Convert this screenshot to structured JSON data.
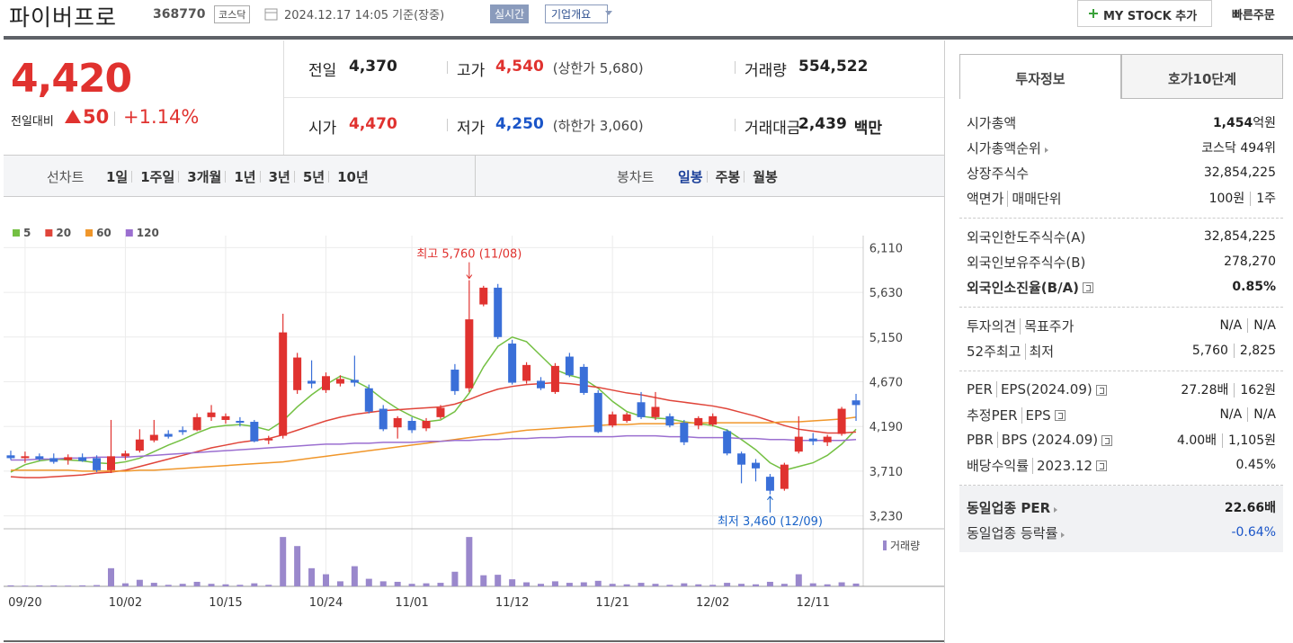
{
  "header": {
    "name": "파이버프로",
    "code": "368770",
    "market": "코스닥",
    "time": "2024.12.17 14:05 기준(장중)",
    "realtime": "실시간",
    "overview": "기업개요",
    "mystock": "MY STOCK 추가",
    "quick_order": "빠른주문"
  },
  "quote": {
    "price": "4,420",
    "change_label": "전일대비",
    "change": "50",
    "change_rate": "+1.14%",
    "items": [
      {
        "label": "전일",
        "value": "4,370"
      },
      {
        "label": "고가",
        "value": "4,540",
        "sub": "(상한가 5,680)"
      },
      {
        "label": "거래량",
        "value": "554,522"
      },
      {
        "label": "시가",
        "value": "4,470"
      },
      {
        "label": "저가",
        "value": "4,250",
        "sub": "(하한가 3,060)"
      },
      {
        "label": "거래대금",
        "value": "2,439",
        "sub": "백만"
      }
    ]
  },
  "tabs": {
    "line_label": "선차트",
    "line_periods": [
      "1일",
      "1주일",
      "3개월",
      "1년",
      "3년",
      "5년",
      "10년"
    ],
    "candle_label": "봉차트",
    "candle_periods": [
      "일봉",
      "주봉",
      "월봉"
    ]
  },
  "chart_data": {
    "type": "candlestick",
    "open": [
      3880,
      3850,
      3870,
      3850,
      3830,
      3860,
      3850,
      3720,
      3870,
      3930,
      4040,
      4110,
      4150,
      4150,
      4290,
      4260,
      4250,
      4240,
      4040,
      4090,
      4580,
      4680,
      4580,
      4650,
      4690,
      4600,
      4380,
      4180,
      4250,
      4170,
      4290,
      4800,
      4600,
      5500,
      5680,
      5080,
      4680,
      4680,
      4560,
      4940,
      4830,
      4550,
      4200,
      4250,
      4450,
      4290,
      4300,
      4230,
      4200,
      4210,
      4140,
      3900,
      3800,
      3650,
      3520,
      3920,
      4060,
      4020,
      4110,
      4470
    ],
    "high": [
      3930,
      3920,
      3900,
      3900,
      3890,
      3900,
      3880,
      4260,
      3930,
      4160,
      4260,
      4150,
      4190,
      4330,
      4420,
      4330,
      4290,
      4260,
      4090,
      5400,
      4980,
      4900,
      4770,
      4740,
      4950,
      4640,
      4420,
      4300,
      4290,
      4280,
      4420,
      4860,
      5760,
      5700,
      5720,
      5120,
      4880,
      4720,
      4870,
      4980,
      4860,
      4580,
      4350,
      4340,
      4560,
      4560,
      4330,
      4260,
      4300,
      4330,
      4160,
      3920,
      3840,
      3680,
      3800,
      4300,
      4120,
      4100,
      4400,
      4540
    ],
    "low": [
      3830,
      3800,
      3820,
      3790,
      3780,
      3810,
      3700,
      3690,
      3830,
      3910,
      4020,
      4060,
      4100,
      4140,
      4250,
      4220,
      4190,
      4020,
      4000,
      4060,
      4540,
      4600,
      4550,
      4620,
      4620,
      4330,
      4140,
      4060,
      4120,
      4140,
      4270,
      4530,
      4560,
      5480,
      5130,
      4640,
      4650,
      4580,
      4540,
      4720,
      4530,
      4120,
      4180,
      4230,
      4270,
      4260,
      4180,
      3990,
      4160,
      4190,
      3880,
      3580,
      3600,
      3460,
      3500,
      3900,
      3990,
      3980,
      4090,
      4250
    ],
    "close": [
      3850,
      3870,
      3840,
      3810,
      3860,
      3820,
      3720,
      3870,
      3900,
      4050,
      4100,
      4080,
      4130,
      4290,
      4340,
      4300,
      4230,
      4030,
      4060,
      5200,
      4930,
      4650,
      4730,
      4700,
      4660,
      4350,
      4160,
      4280,
      4150,
      4250,
      4390,
      4570,
      5340,
      5680,
      5150,
      4660,
      4850,
      4600,
      4840,
      4740,
      4550,
      4130,
      4320,
      4320,
      4290,
      4400,
      4200,
      4020,
      4280,
      4300,
      3900,
      3780,
      3740,
      3500,
      3780,
      4080,
      4030,
      4080,
      4380,
      4420
    ],
    "volume": [
      200000,
      150000,
      200000,
      180000,
      150000,
      200000,
      250000,
      3600000,
      600000,
      1300000,
      700000,
      300000,
      500000,
      900000,
      500000,
      400000,
      300000,
      600000,
      300000,
      9800000,
      8000000,
      3600000,
      2400000,
      1000000,
      4000000,
      1500000,
      1000000,
      900000,
      500000,
      600000,
      700000,
      2900000,
      9800000,
      2200000,
      2300000,
      1400000,
      800000,
      500000,
      1000000,
      700000,
      800000,
      1100000,
      500000,
      400000,
      700000,
      500000,
      300000,
      600000,
      400000,
      300000,
      700000,
      500000,
      400000,
      900000,
      500000,
      2400000,
      600000,
      400000,
      800000,
      554522
    ],
    "volume_ylim": [
      0,
      10000000
    ],
    "volume_label": "거래량",
    "volume_color": "#9a88cc",
    "up_color": "#e0322f",
    "down_color": "#3a6fd8",
    "ylim": [
      3130,
      6210
    ],
    "yticks": [
      {
        "value": 3230,
        "label": "3,230"
      },
      {
        "value": 3710,
        "label": "3,710"
      },
      {
        "value": 4190,
        "label": "4,190"
      },
      {
        "value": 4670,
        "label": "4,670"
      },
      {
        "value": 5150,
        "label": "5,150"
      },
      {
        "value": 5630,
        "label": "5,630"
      },
      {
        "value": 6110,
        "label": "6,110"
      }
    ],
    "x_labels": [
      {
        "index": 1,
        "label": "09/20"
      },
      {
        "index": 8,
        "label": "10/02"
      },
      {
        "index": 15,
        "label": "10/15"
      },
      {
        "index": 22,
        "label": "10/24"
      },
      {
        "index": 28,
        "label": "11/01"
      },
      {
        "index": 35,
        "label": "11/12"
      },
      {
        "index": 42,
        "label": "11/21"
      },
      {
        "index": 49,
        "label": "12/02"
      },
      {
        "index": 56,
        "label": "12/11"
      }
    ],
    "grid": true,
    "series": [
      {
        "name": "5",
        "color": "#74c043",
        "values": [
          3700,
          3780,
          3820,
          3840,
          3830,
          3820,
          3800,
          3790,
          3810,
          3850,
          3920,
          3990,
          4050,
          4120,
          4180,
          4200,
          4210,
          4190,
          4150,
          4250,
          4400,
          4530,
          4640,
          4730,
          4680,
          4600,
          4480,
          4380,
          4300,
          4240,
          4260,
          4350,
          4550,
          4830,
          5050,
          5150,
          5100,
          4950,
          4800,
          4740,
          4700,
          4600,
          4460,
          4350,
          4300,
          4280,
          4270,
          4240,
          4220,
          4200,
          4150,
          4050,
          3940,
          3800,
          3720,
          3760,
          3800,
          3880,
          4000,
          4160
        ]
      },
      {
        "name": "20",
        "color": "#e0453a",
        "values": [
          3650,
          3640,
          3640,
          3650,
          3660,
          3670,
          3690,
          3700,
          3720,
          3760,
          3800,
          3840,
          3880,
          3920,
          3960,
          3990,
          4020,
          4040,
          4060,
          4100,
          4150,
          4200,
          4250,
          4290,
          4320,
          4340,
          4360,
          4370,
          4380,
          4390,
          4400,
          4430,
          4480,
          4540,
          4590,
          4620,
          4640,
          4650,
          4660,
          4650,
          4630,
          4610,
          4580,
          4550,
          4530,
          4500,
          4470,
          4450,
          4430,
          4410,
          4380,
          4340,
          4300,
          4250,
          4200,
          4160,
          4140,
          4120,
          4120,
          4130
        ]
      },
      {
        "name": "60",
        "color": "#f0962a",
        "values": [
          3720,
          3720,
          3720,
          3720,
          3720,
          3710,
          3710,
          3710,
          3710,
          3720,
          3720,
          3730,
          3740,
          3750,
          3760,
          3770,
          3780,
          3790,
          3800,
          3810,
          3830,
          3850,
          3870,
          3890,
          3910,
          3930,
          3950,
          3970,
          3990,
          4010,
          4030,
          4050,
          4070,
          4090,
          4110,
          4130,
          4150,
          4160,
          4170,
          4180,
          4190,
          4200,
          4210,
          4210,
          4220,
          4220,
          4220,
          4230,
          4230,
          4230,
          4230,
          4230,
          4230,
          4230,
          4240,
          4240,
          4250,
          4260,
          4270,
          4290
        ]
      },
      {
        "name": "120",
        "color": "#9b6fd0",
        "values": [
          3830,
          3830,
          3840,
          3840,
          3850,
          3850,
          3860,
          3860,
          3860,
          3870,
          3880,
          3890,
          3900,
          3910,
          3920,
          3930,
          3940,
          3950,
          3960,
          3970,
          3980,
          3990,
          4000,
          4000,
          4010,
          4010,
          4020,
          4020,
          4020,
          4030,
          4030,
          4040,
          4040,
          4050,
          4050,
          4060,
          4060,
          4070,
          4070,
          4080,
          4080,
          4080,
          4080,
          4090,
          4090,
          4090,
          4080,
          4080,
          4070,
          4070,
          4070,
          4060,
          4060,
          4050,
          4050,
          4040,
          4040,
          4040,
          4040,
          4050
        ]
      }
    ],
    "annotations": [
      {
        "text": "최고 5,760 (11/08)",
        "index": 32,
        "at": "high",
        "color": "#e0322f"
      },
      {
        "text": "최저 3,460 (12/09)",
        "index": 53,
        "at": "low",
        "color": "#1a63c8"
      }
    ]
  },
  "invest": {
    "tabs": [
      "투자정보",
      "호가10단계"
    ],
    "groups": [
      [
        {
          "labels": [
            "시가총액"
          ],
          "values": [
            "1,454"
          ],
          "unit": "억원"
        },
        {
          "labels": [
            "시가총액순위"
          ],
          "values": [
            "코스닥 494위"
          ]
        },
        {
          "labels": [
            "상장주식수"
          ],
          "values": [
            "32,854,225"
          ]
        },
        {
          "labels": [
            "액면가",
            "매매단위"
          ],
          "values": [
            "100원",
            "1주"
          ]
        }
      ],
      [
        {
          "labels": [
            "외국인한도주식수(A)"
          ],
          "values": [
            "32,854,225"
          ]
        },
        {
          "labels": [
            "외국인보유주식수(B)"
          ],
          "values": [
            "278,270"
          ]
        },
        {
          "labels": [
            "외국인소진율(B/A)"
          ],
          "values": [
            "0.85%"
          ]
        }
      ],
      [
        {
          "labels": [
            "투자의견",
            "목표주가"
          ],
          "values": [
            "N/A",
            "N/A"
          ]
        },
        {
          "labels": [
            "52주최고",
            "최저"
          ],
          "values": [
            "5,760",
            "2,825"
          ]
        }
      ],
      [
        {
          "labels": [
            "PER",
            "EPS(2024.09)"
          ],
          "values": [
            "27.28배",
            "162원"
          ]
        },
        {
          "labels": [
            "추정PER",
            "EPS"
          ],
          "values": [
            "N/A",
            "N/A"
          ]
        },
        {
          "labels": [
            "PBR",
            "BPS (2024.09)"
          ],
          "values": [
            "4.00배",
            "1,105원"
          ]
        },
        {
          "labels": [
            "배당수익률",
            "2023.12"
          ],
          "values": [
            "0.45%"
          ]
        }
      ],
      [
        {
          "labels": [
            "동일업종 PER"
          ],
          "values": [
            "22.66배"
          ]
        },
        {
          "labels": [
            "동일업종 등락률"
          ],
          "values": [
            "-0.64%"
          ]
        }
      ]
    ]
  }
}
